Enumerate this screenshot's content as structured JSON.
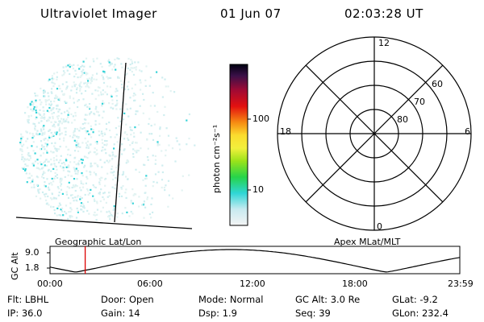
{
  "header": {
    "instrument": "Ultraviolet Imager",
    "date": "01 Jun 07",
    "time": "02:03:28 UT"
  },
  "colorbar": {
    "label": "photon cm⁻²s⁻¹",
    "ticks": [
      "100",
      "10"
    ]
  },
  "polar_plot": {
    "mlt_labels": {
      "top": "12",
      "left": "18",
      "right": "6",
      "bottom": "0"
    },
    "lat_labels": [
      "60",
      "70",
      "80"
    ]
  },
  "panels": {
    "left_caption": "Geographic Lat/Lon",
    "right_caption": "Apex MLat/MLT"
  },
  "altitude_plot": {
    "ylabel": "GC Alt",
    "yticks": [
      "9.0",
      "1.8"
    ],
    "xticks": [
      "00:00",
      "06:00",
      "12:00",
      "18:00",
      "23:59"
    ],
    "current_time_hours": 2.06,
    "marker_color": "#dd0000"
  },
  "info": {
    "row1": [
      {
        "label": "Flt:",
        "value": "LBHL"
      },
      {
        "label": "Door:",
        "value": "Open"
      },
      {
        "label": "Mode:",
        "value": "Normal"
      },
      {
        "label": "GC Alt:",
        "value": "3.0 Re"
      },
      {
        "label": "GLat:",
        "value": "-9.2"
      }
    ],
    "row2": [
      {
        "label": "IP:",
        "value": "36.0"
      },
      {
        "label": "Gain:",
        "value": "14"
      },
      {
        "label": "Dsp:",
        "value": "1.9"
      },
      {
        "label": "Seq:",
        "value": "39"
      },
      {
        "label": "GLon:",
        "value": "232.4"
      }
    ]
  }
}
